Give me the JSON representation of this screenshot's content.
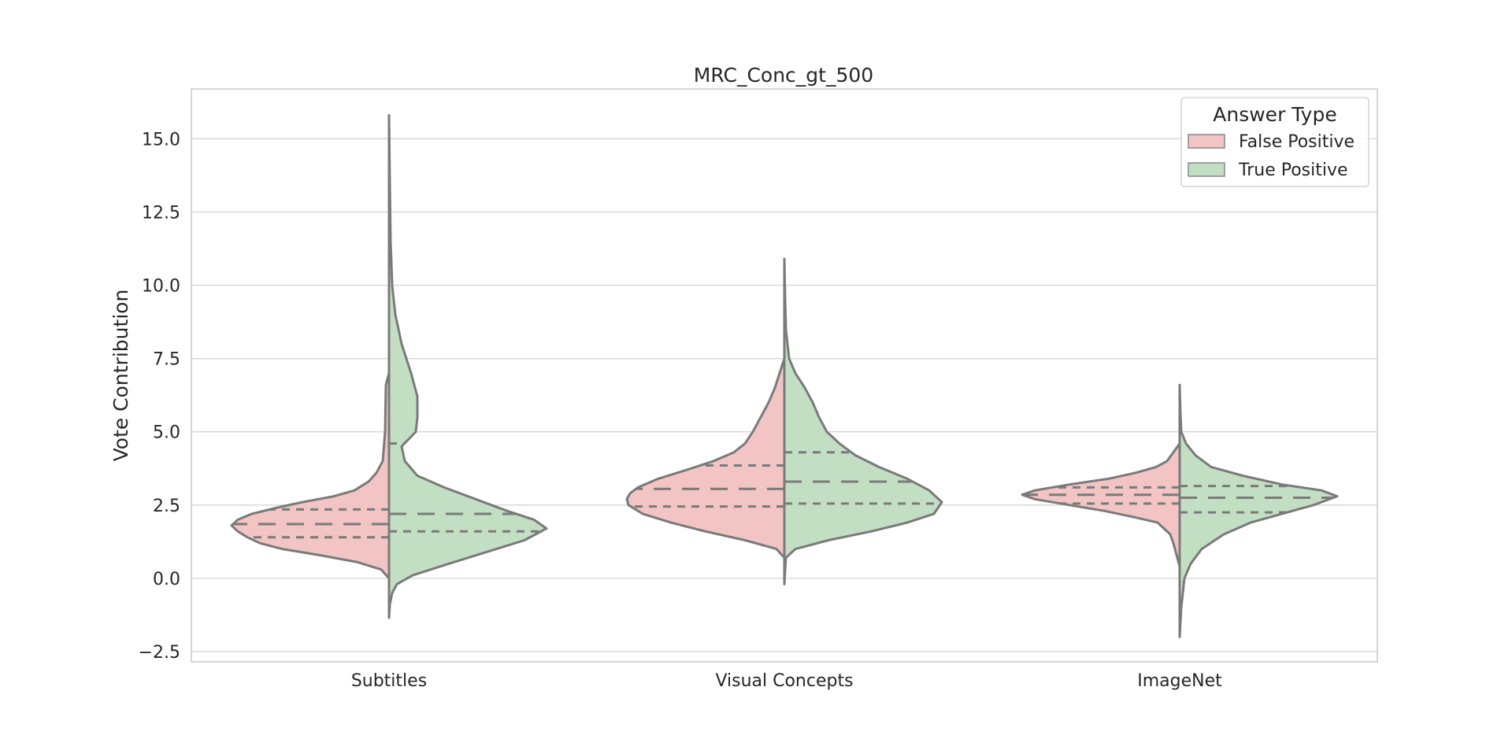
{
  "chart_data": {
    "type": "violin",
    "title": "MRC_Conc_gt_500",
    "xlabel": "",
    "ylabel": "Vote Contribution",
    "ylim": [
      -2.85,
      16.7
    ],
    "yticks": [
      -2.5,
      0.0,
      2.5,
      5.0,
      7.5,
      10.0,
      12.5,
      15.0
    ],
    "ytick_labels": [
      "−2.5",
      "0.0",
      "2.5",
      "5.0",
      "7.5",
      "10.0",
      "12.5",
      "15.0"
    ],
    "grid": true,
    "split": true,
    "inner": "quartile",
    "categories": [
      "Subtitles",
      "Visual Concepts",
      "ImageNet"
    ],
    "legend": {
      "title": "Answer Type",
      "placement": "top-right",
      "entries": [
        {
          "label": "False Positive",
          "color": "#f2c4c4"
        },
        {
          "label": "True Positive",
          "color": "#c3dfc3"
        }
      ]
    },
    "series": [
      {
        "name": "False Positive",
        "side": "left",
        "color": "#f2c4c4",
        "violins": [
          {
            "category": "Subtitles",
            "quartiles": [
              1.4,
              1.85,
              2.35
            ],
            "profile": [
              [
                0.0,
                0.0
              ],
              [
                0.3,
                0.05
              ],
              [
                0.55,
                0.2
              ],
              [
                0.8,
                0.45
              ],
              [
                1.0,
                0.68
              ],
              [
                1.2,
                0.82
              ],
              [
                1.4,
                0.9
              ],
              [
                1.6,
                0.96
              ],
              [
                1.8,
                1.0
              ],
              [
                2.0,
                0.96
              ],
              [
                2.2,
                0.87
              ],
              [
                2.4,
                0.72
              ],
              [
                2.6,
                0.55
              ],
              [
                2.8,
                0.35
              ],
              [
                3.0,
                0.22
              ],
              [
                3.3,
                0.13
              ],
              [
                3.6,
                0.08
              ],
              [
                4.0,
                0.04
              ],
              [
                5.0,
                0.025
              ],
              [
                6.6,
                0.02
              ],
              [
                7.0,
                0.0
              ]
            ]
          },
          {
            "category": "Visual Concepts",
            "quartiles": [
              2.45,
              3.05,
              3.85
            ],
            "profile": [
              [
                0.7,
                0.0
              ],
              [
                1.0,
                0.05
              ],
              [
                1.3,
                0.25
              ],
              [
                1.6,
                0.5
              ],
              [
                1.9,
                0.72
              ],
              [
                2.2,
                0.9
              ],
              [
                2.5,
                0.99
              ],
              [
                2.7,
                1.0
              ],
              [
                2.9,
                0.98
              ],
              [
                3.1,
                0.93
              ],
              [
                3.4,
                0.8
              ],
              [
                3.7,
                0.62
              ],
              [
                4.0,
                0.45
              ],
              [
                4.3,
                0.32
              ],
              [
                4.6,
                0.25
              ],
              [
                5.0,
                0.2
              ],
              [
                5.5,
                0.15
              ],
              [
                6.0,
                0.1
              ],
              [
                6.5,
                0.06
              ],
              [
                7.0,
                0.03
              ],
              [
                7.5,
                0.0
              ]
            ]
          },
          {
            "category": "ImageNet",
            "quartiles": [
              2.55,
              2.85,
              3.1
            ],
            "profile": [
              [
                0.4,
                0.0
              ],
              [
                0.8,
                0.02
              ],
              [
                1.2,
                0.04
              ],
              [
                1.5,
                0.06
              ],
              [
                1.7,
                0.1
              ],
              [
                1.9,
                0.14
              ],
              [
                2.1,
                0.3
              ],
              [
                2.3,
                0.48
              ],
              [
                2.5,
                0.7
              ],
              [
                2.7,
                0.92
              ],
              [
                2.85,
                1.0
              ],
              [
                3.0,
                0.92
              ],
              [
                3.2,
                0.7
              ],
              [
                3.4,
                0.45
              ],
              [
                3.6,
                0.28
              ],
              [
                3.8,
                0.15
              ],
              [
                4.0,
                0.08
              ],
              [
                4.3,
                0.04
              ],
              [
                4.6,
                0.0
              ]
            ]
          }
        ]
      },
      {
        "name": "True Positive",
        "side": "right",
        "color": "#c3dfc3",
        "violins": [
          {
            "category": "Subtitles",
            "quartiles": [
              1.6,
              2.2,
              4.6
            ],
            "profile": [
              [
                -1.35,
                0.0
              ],
              [
                -0.9,
                0.005
              ],
              [
                -0.5,
                0.02
              ],
              [
                -0.2,
                0.05
              ],
              [
                0.1,
                0.15
              ],
              [
                0.5,
                0.38
              ],
              [
                0.9,
                0.62
              ],
              [
                1.3,
                0.86
              ],
              [
                1.7,
                1.0
              ],
              [
                2.0,
                0.92
              ],
              [
                2.3,
                0.75
              ],
              [
                2.7,
                0.55
              ],
              [
                3.1,
                0.35
              ],
              [
                3.5,
                0.18
              ],
              [
                4.0,
                0.1
              ],
              [
                4.5,
                0.08
              ],
              [
                5.0,
                0.17
              ],
              [
                5.5,
                0.18
              ],
              [
                6.2,
                0.18
              ],
              [
                7.0,
                0.14
              ],
              [
                8.0,
                0.08
              ],
              [
                9.0,
                0.04
              ],
              [
                10.0,
                0.02
              ],
              [
                11.5,
                0.01
              ],
              [
                13.5,
                0.005
              ],
              [
                15.8,
                0.0
              ]
            ]
          },
          {
            "category": "Visual Concepts",
            "quartiles": [
              2.55,
              3.3,
              4.3
            ],
            "profile": [
              [
                -0.2,
                0.0
              ],
              [
                0.3,
                0.005
              ],
              [
                0.7,
                0.01
              ],
              [
                1.0,
                0.07
              ],
              [
                1.3,
                0.28
              ],
              [
                1.6,
                0.55
              ],
              [
                1.9,
                0.78
              ],
              [
                2.2,
                0.95
              ],
              [
                2.6,
                1.0
              ],
              [
                3.0,
                0.92
              ],
              [
                3.4,
                0.78
              ],
              [
                3.8,
                0.6
              ],
              [
                4.2,
                0.45
              ],
              [
                4.6,
                0.35
              ],
              [
                5.0,
                0.27
              ],
              [
                5.5,
                0.22
              ],
              [
                6.0,
                0.18
              ],
              [
                6.5,
                0.13
              ],
              [
                7.0,
                0.07
              ],
              [
                7.5,
                0.03
              ],
              [
                8.5,
                0.01
              ],
              [
                9.5,
                0.005
              ],
              [
                10.9,
                0.0
              ]
            ]
          },
          {
            "category": "ImageNet",
            "quartiles": [
              2.25,
              2.75,
              3.15
            ],
            "profile": [
              [
                -2.0,
                0.0
              ],
              [
                -1.5,
                0.005
              ],
              [
                -1.0,
                0.01
              ],
              [
                -0.5,
                0.02
              ],
              [
                0.0,
                0.03
              ],
              [
                0.5,
                0.07
              ],
              [
                1.0,
                0.14
              ],
              [
                1.5,
                0.28
              ],
              [
                1.9,
                0.45
              ],
              [
                2.2,
                0.65
              ],
              [
                2.5,
                0.85
              ],
              [
                2.8,
                1.0
              ],
              [
                3.0,
                0.9
              ],
              [
                3.2,
                0.65
              ],
              [
                3.5,
                0.4
              ],
              [
                3.8,
                0.2
              ],
              [
                4.2,
                0.1
              ],
              [
                4.6,
                0.04
              ],
              [
                5.0,
                0.01
              ],
              [
                5.6,
                0.005
              ],
              [
                6.6,
                0.0
              ]
            ]
          }
        ]
      }
    ]
  }
}
